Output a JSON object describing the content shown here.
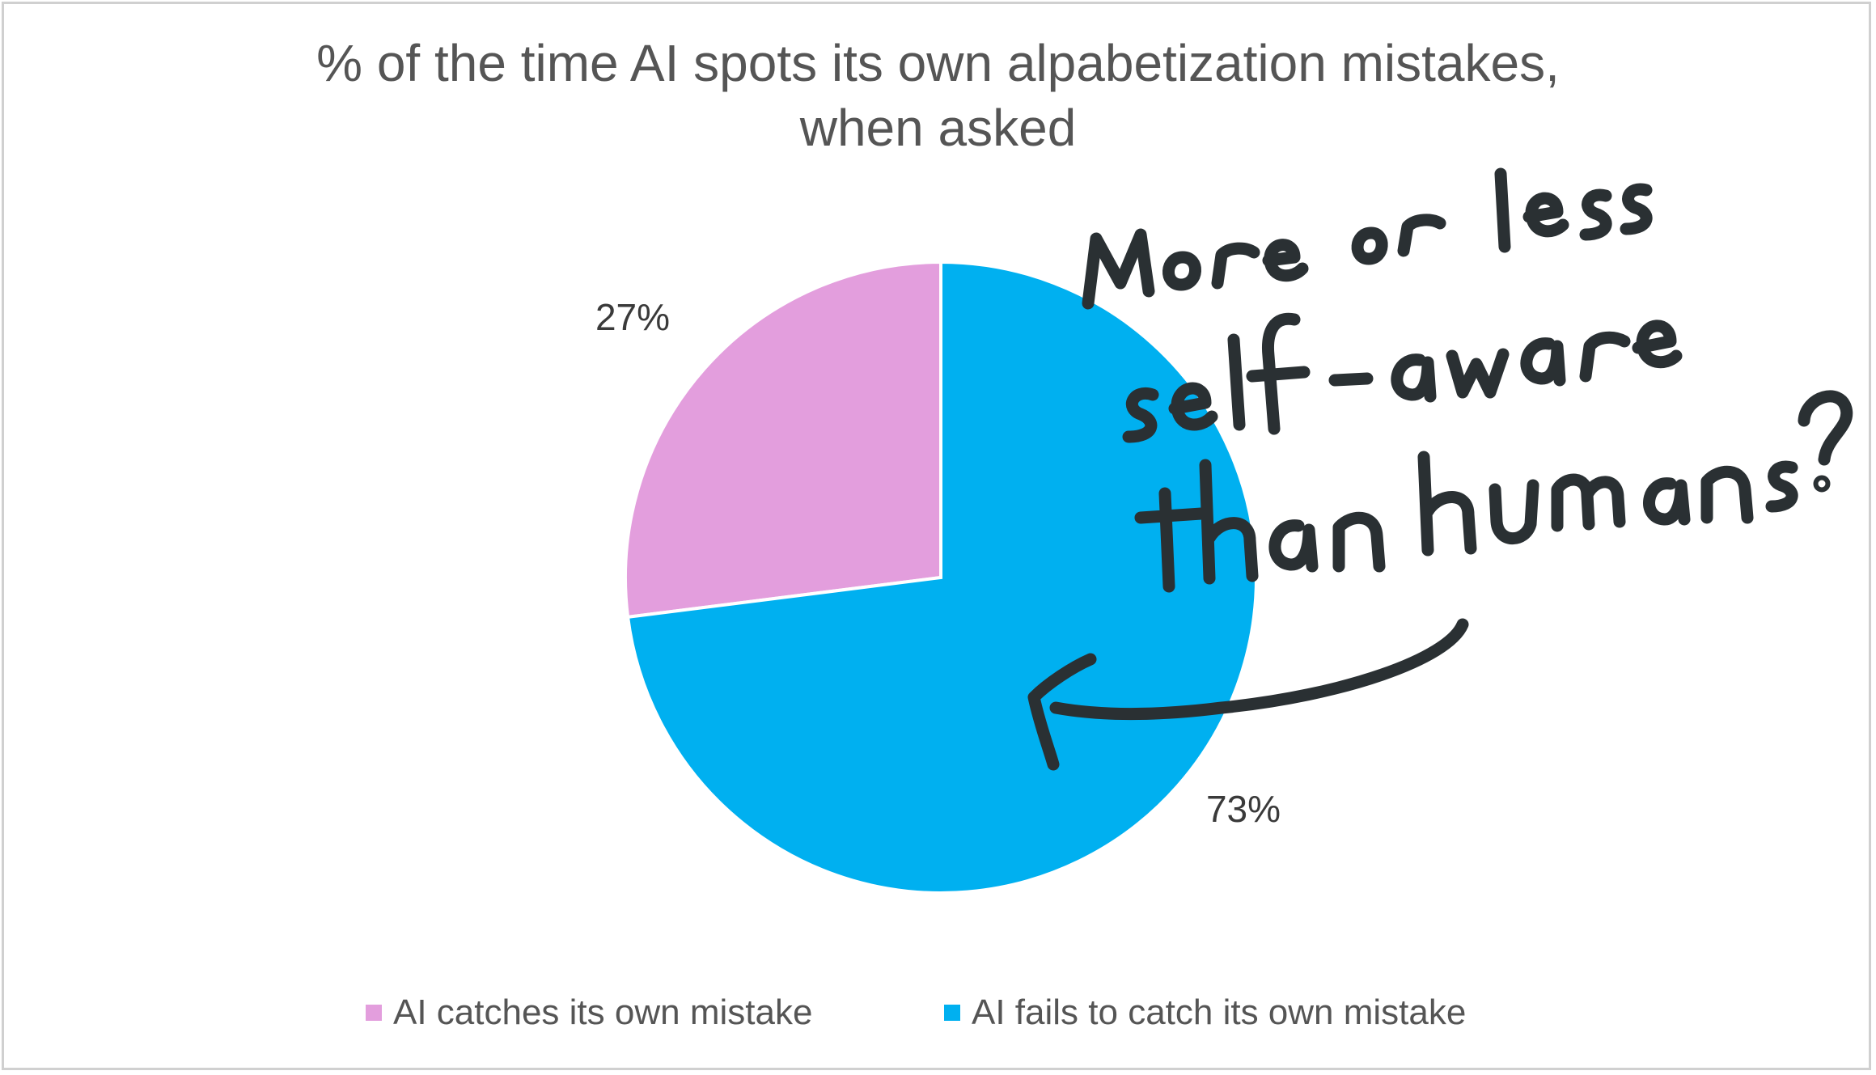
{
  "chart_data": {
    "type": "pie",
    "title_lines": [
      "% of the time AI spots its own alpabetization mistakes,",
      "when asked"
    ],
    "slices": [
      {
        "label": "AI catches its own mistake",
        "value": 27,
        "data_label": "27%",
        "color": "#e39edd"
      },
      {
        "label": "AI fails to catch its own mistake",
        "value": 73,
        "data_label": "73%",
        "color": "#00b0f0"
      }
    ],
    "legend_position": "bottom",
    "annotation": {
      "text_lines": [
        "More or less",
        "self-aware",
        "than humans?"
      ],
      "style": "handwritten",
      "arrow_points_to": "AI fails to catch its own mistake",
      "color": "#2a3033"
    }
  },
  "colors": {
    "title_text": "#555555",
    "data_label_text": "#3a3a3a",
    "frame_border": "#d0d0d0"
  }
}
